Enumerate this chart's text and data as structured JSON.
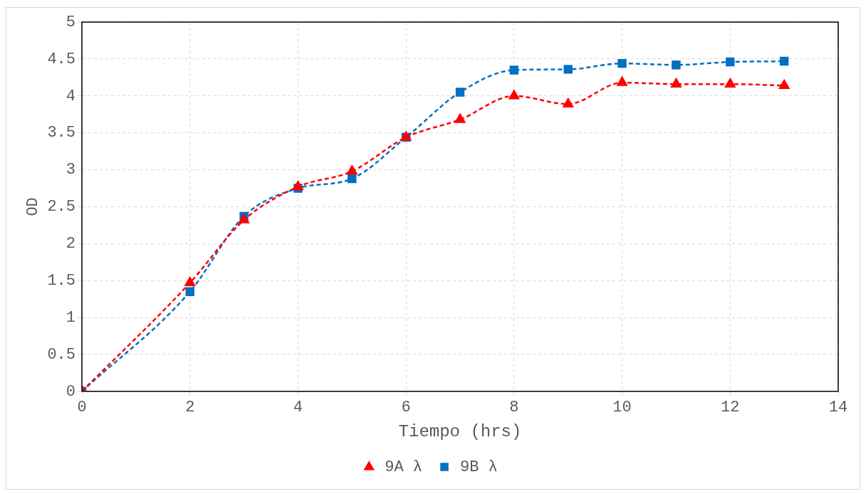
{
  "chart_data": {
    "type": "line",
    "xlabel": "Tiempo (hrs)",
    "ylabel": "OD",
    "x": [
      0,
      2,
      3,
      4,
      5,
      6,
      7,
      8,
      9,
      10,
      11,
      12,
      13
    ],
    "series": [
      {
        "name": "9A λ",
        "color": "#ff0000",
        "marker": "triangle",
        "values": [
          0,
          1.47,
          2.32,
          2.77,
          2.98,
          3.44,
          3.68,
          4.0,
          3.89,
          4.18,
          4.16,
          4.16,
          4.14
        ]
      },
      {
        "name": "9B λ",
        "color": "#0070c0",
        "marker": "square",
        "values": [
          0,
          1.35,
          2.37,
          2.75,
          2.88,
          3.44,
          4.05,
          4.35,
          4.36,
          4.44,
          4.42,
          4.46,
          4.47
        ]
      }
    ],
    "xlim": [
      0,
      14
    ],
    "xticks": [
      0,
      2,
      4,
      6,
      8,
      10,
      12,
      14
    ],
    "ylim": [
      0,
      5
    ],
    "yticks": [
      0,
      0.5,
      1,
      1.5,
      2,
      2.5,
      3,
      3.5,
      4,
      4.5,
      5
    ],
    "grid": true,
    "legend": "bottom",
    "line_style": "dashed"
  }
}
